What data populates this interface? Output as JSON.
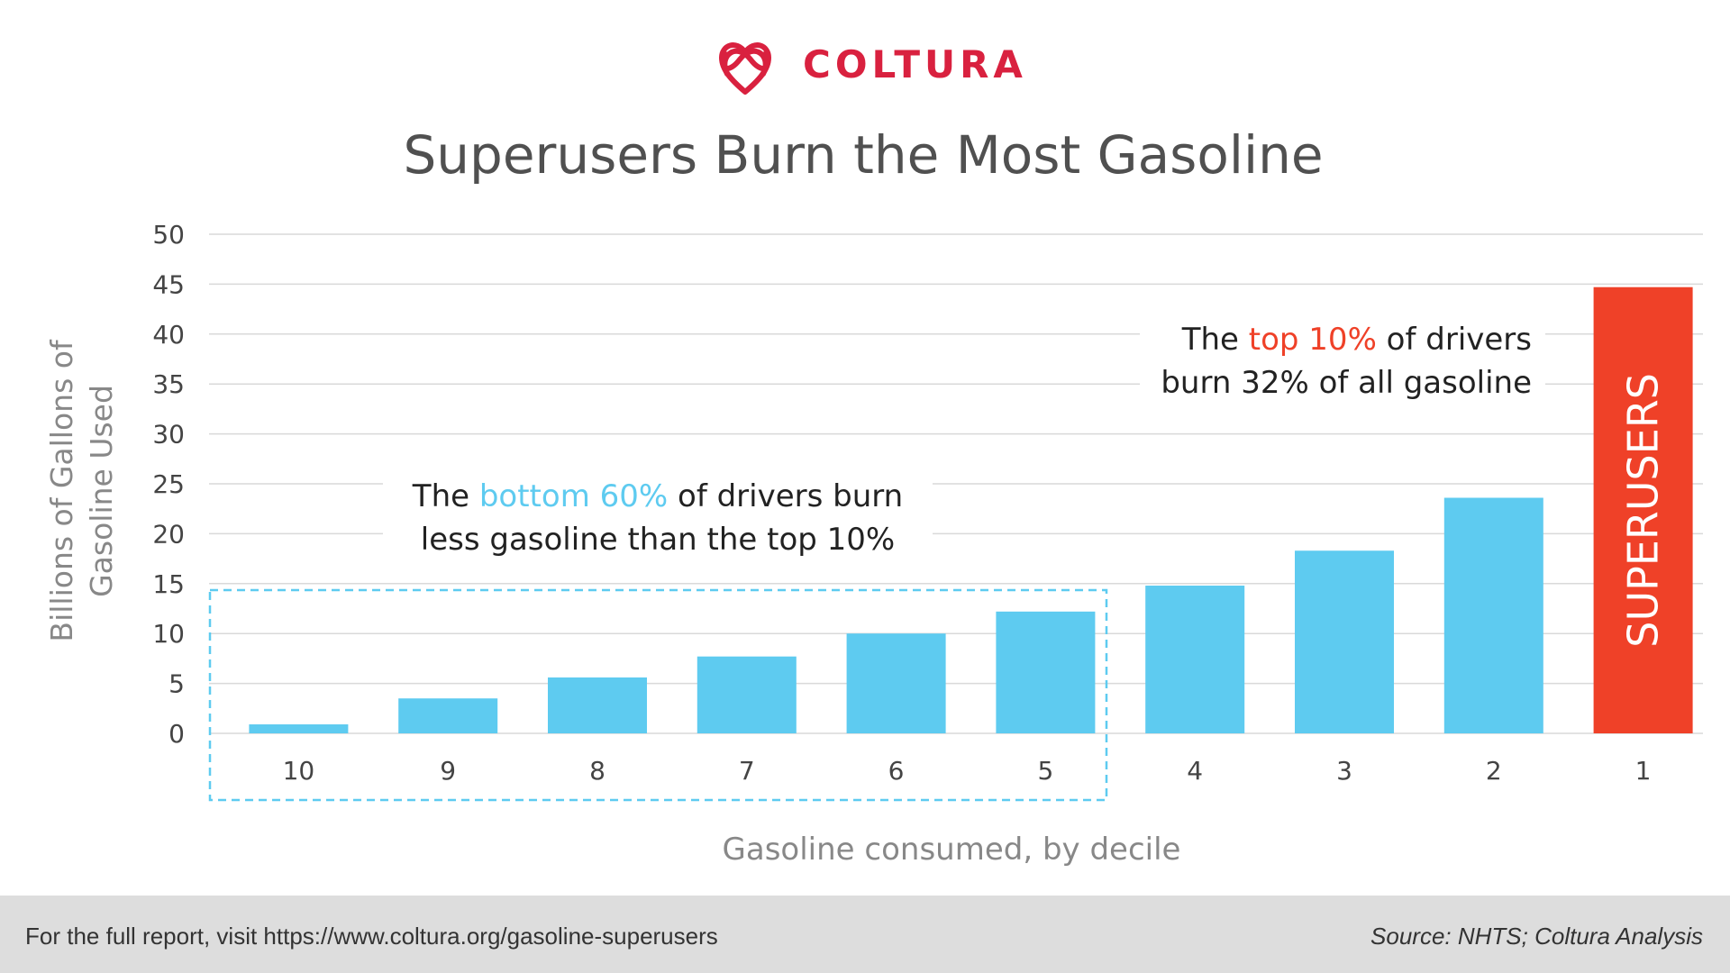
{
  "brand": {
    "name": "COLTURA",
    "color": "#d9213f",
    "logo_icon": "intertwined-hearts-icon"
  },
  "chart_data": {
    "type": "bar",
    "title": "Superusers Burn the Most Gasoline",
    "xlabel": "Gasoline consumed, by decile",
    "ylabel": "Billions of Gallons of Gasoline Used",
    "ylim": [
      0,
      50
    ],
    "yticks": [
      0,
      5,
      10,
      15,
      20,
      25,
      30,
      35,
      40,
      45,
      50
    ],
    "grid": true,
    "categories": [
      "10",
      "9",
      "8",
      "7",
      "6",
      "5",
      "4",
      "3",
      "2",
      "1"
    ],
    "values": [
      0.9,
      3.5,
      5.6,
      7.7,
      10.0,
      12.2,
      14.8,
      18.3,
      23.6,
      44.7
    ],
    "bar_colors": [
      "#5ecbf0",
      "#5ecbf0",
      "#5ecbf0",
      "#5ecbf0",
      "#5ecbf0",
      "#5ecbf0",
      "#5ecbf0",
      "#5ecbf0",
      "#5ecbf0",
      "#ef4128"
    ],
    "bar_labels": [
      "",
      "",
      "",
      "",
      "",
      "",
      "",
      "",
      "",
      "SUPERUSERS"
    ],
    "annotations": [
      {
        "id": "bottom",
        "line1_pre": "The ",
        "line1_hl": "bottom 60%",
        "line1_post": " of drivers burn",
        "line2": "less gasoline than the top 10%",
        "highlight_color": "#5ecbf0"
      },
      {
        "id": "top",
        "line1_pre": "The ",
        "line1_hl": "top 10%",
        "line1_post": " of drivers",
        "line2": "burn 32% of all gasoline",
        "highlight_color": "#ef4128"
      }
    ],
    "highlight_box_color": "#5ecbf0"
  },
  "footer": {
    "left": "For the full report, visit https://www.coltura.org/gasoline-superusers",
    "right": "Source: NHTS; Coltura Analysis"
  }
}
